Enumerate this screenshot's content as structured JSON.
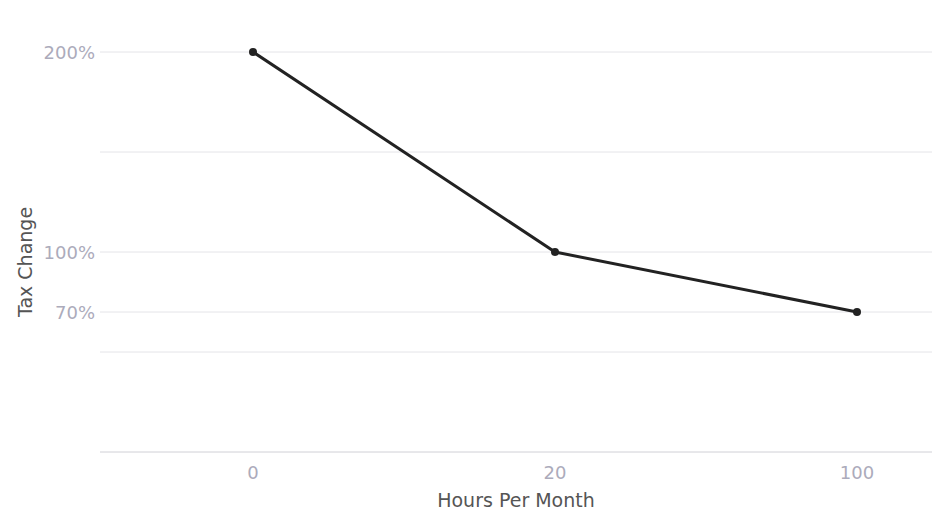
{
  "chart_data": {
    "type": "line",
    "x_label": "Hours Per Month",
    "y_label": "Tax Change",
    "categories": [
      "0",
      "20",
      "100"
    ],
    "values": [
      200,
      100,
      70
    ],
    "color": "#222222",
    "marker": "circle",
    "ylim": [
      0,
      200
    ],
    "yticks": [
      {
        "value": 0,
        "label": null
      },
      {
        "value": 50,
        "label": null
      },
      {
        "value": 70,
        "label": "70%"
      },
      {
        "value": 100,
        "label": "100%"
      },
      {
        "value": 150,
        "label": null
      },
      {
        "value": 200,
        "label": "200%"
      }
    ],
    "grid": true
  }
}
